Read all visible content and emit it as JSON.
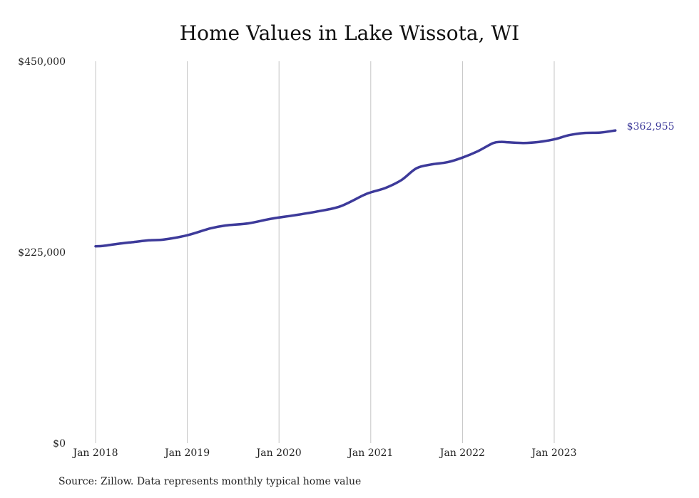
{
  "chart_data": {
    "type": "line",
    "title": "Home Values in Lake Wissota, WI",
    "xlabel": "",
    "ylabel": "",
    "ylim": [
      0,
      450000
    ],
    "y_ticks": [
      "$0",
      "$225,000",
      "$450,000"
    ],
    "y_tick_values": [
      0,
      225000,
      450000
    ],
    "x_ticks": [
      "Jan 2018",
      "Jan 2019",
      "Jan 2020",
      "Jan 2021",
      "Jan 2022",
      "Jan 2023"
    ],
    "x_tick_values": [
      "2018-01",
      "2019-01",
      "2020-01",
      "2021-01",
      "2022-01",
      "2023-01"
    ],
    "grid": "vertical",
    "series_color": "#3d3a9a",
    "end_label": "$362,955",
    "x": [
      "2018-01",
      "2018-02",
      "2018-04",
      "2018-06",
      "2018-08",
      "2018-10",
      "2019-01",
      "2019-04",
      "2019-06",
      "2019-09",
      "2019-12",
      "2020-03",
      "2020-06",
      "2020-09",
      "2020-12",
      "2021-01",
      "2021-03",
      "2021-05",
      "2021-07",
      "2021-09",
      "2021-11",
      "2022-01",
      "2022-03",
      "2022-05",
      "2022-06",
      "2022-07",
      "2022-09",
      "2022-11",
      "2023-01",
      "2023-03",
      "2023-05",
      "2023-07",
      "2023-09"
    ],
    "y": [
      232000,
      232500,
      235000,
      237000,
      239000,
      240000,
      245000,
      253000,
      256500,
      259000,
      264500,
      268500,
      273000,
      279000,
      292000,
      295500,
      301000,
      310000,
      324000,
      328500,
      331000,
      336500,
      344000,
      353500,
      355000,
      354500,
      353700,
      355000,
      358000,
      363000,
      365500,
      366000,
      368500
    ],
    "end_value": 362955
  },
  "footer": {
    "source": "Source: Zillow. Data represents monthly typical home value"
  }
}
